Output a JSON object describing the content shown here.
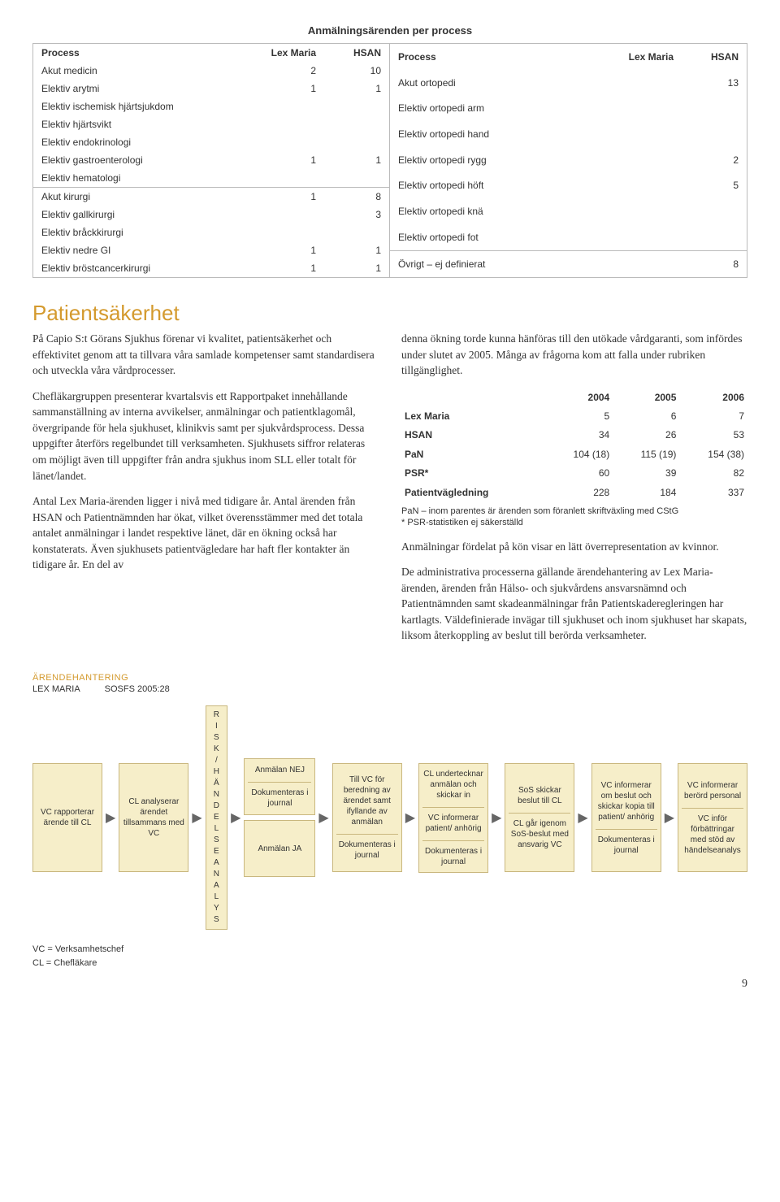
{
  "tableTitle": "Anmälningsärenden per process",
  "table": {
    "headers": [
      "Process",
      "Lex Maria",
      "HSAN"
    ],
    "left": [
      {
        "p": "Akut medicin",
        "lm": "2",
        "h": "10"
      },
      {
        "p": "Elektiv arytmi",
        "lm": "1",
        "h": "1"
      },
      {
        "p": "Elektiv ischemisk hjärtsjukdom",
        "lm": "",
        "h": ""
      },
      {
        "p": "Elektiv hjärtsvikt",
        "lm": "",
        "h": ""
      },
      {
        "p": "Elektiv endokrinologi",
        "lm": "",
        "h": ""
      },
      {
        "p": "Elektiv gastroenterologi",
        "lm": "1",
        "h": "1"
      },
      {
        "p": "Elektiv hematologi",
        "lm": "",
        "h": ""
      }
    ],
    "left2": [
      {
        "p": "Akut kirurgi",
        "lm": "1",
        "h": "8"
      },
      {
        "p": "Elektiv gallkirurgi",
        "lm": "",
        "h": "3"
      },
      {
        "p": "Elektiv bråckkirurgi",
        "lm": "",
        "h": ""
      },
      {
        "p": "Elektiv nedre GI",
        "lm": "1",
        "h": "1"
      },
      {
        "p": "Elektiv bröstcancerkirurgi",
        "lm": "1",
        "h": "1"
      }
    ],
    "right": [
      {
        "p": "Akut ortopedi",
        "lm": "",
        "h": "13"
      },
      {
        "p": "Elektiv ortopedi arm",
        "lm": "",
        "h": ""
      },
      {
        "p": "Elektiv ortopedi hand",
        "lm": "",
        "h": ""
      },
      {
        "p": "Elektiv ortopedi rygg",
        "lm": "",
        "h": "2"
      },
      {
        "p": "Elektiv ortopedi höft",
        "lm": "",
        "h": "5"
      },
      {
        "p": "Elektiv ortopedi knä",
        "lm": "",
        "h": ""
      },
      {
        "p": "Elektiv ortopedi fot",
        "lm": "",
        "h": ""
      }
    ],
    "right2": [
      {
        "p": "Övrigt – ej definierat",
        "lm": "",
        "h": "8"
      }
    ]
  },
  "sectionTitle": "Patientsäkerhet",
  "paragraphs_left": [
    "På Capio S:t Görans Sjukhus förenar vi kvalitet, patientsäkerhet och effektivitet genom att ta tillvara våra samlade kompetenser samt standardisera och utveckla våra vårdprocesser.",
    "Chefläkargruppen presenterar kvartalsvis ett Rapportpaket innehållande sammanställning av interna avvikelser, anmälningar och patientklagomål, övergripande för hela sjukhuset, klinikvis samt per sjukvårdsprocess. Dessa uppgifter återförs regelbundet till verksamheten. Sjukhusets siffror relateras om möjligt även till uppgifter från andra sjukhus inom SLL eller totalt för länet/landet.",
    "Antal Lex Maria-ärenden ligger i nivå med tidigare år. Antal ärenden från HSAN och Patientnämnden har ökat, vilket överensstämmer med det totala antalet anmälningar i landet respektive länet, där en ökning också har konstaterats. Även sjukhusets patientvägledare har haft fler kontakter än tidigare år. En del av"
  ],
  "paragraphs_right_top": "denna ökning torde kunna hänföras till den utökade vårdgaranti, som infördes under slutet av 2005. Många av frågorna kom att falla under rubriken tillgänglighet.",
  "stats": {
    "years": [
      "2004",
      "2005",
      "2006"
    ],
    "rows": [
      {
        "label": "Lex Maria",
        "v": [
          "5",
          "6",
          "7"
        ]
      },
      {
        "label": "HSAN",
        "v": [
          "34",
          "26",
          "53"
        ]
      },
      {
        "label": "PaN",
        "v": [
          "104 (18)",
          "115 (19)",
          "154 (38)"
        ]
      },
      {
        "label": "PSR*",
        "v": [
          "60",
          "39",
          "82"
        ]
      },
      {
        "label": "Patientvägledning",
        "v": [
          "228",
          "184",
          "337"
        ]
      }
    ],
    "note": "PaN – inom parentes är ärenden som föranlett skriftväxling med CStG\n* PSR-statistiken ej säkerställd"
  },
  "paragraphs_right_bottom": [
    "Anmälningar fördelat på kön visar en lätt överrepresentation av kvinnor.",
    "De administrativa processerna gällande ärendehantering av Lex Maria-ärenden, ärenden från Hälso- och sjukvårdens ansvarsnämnd och Patientnämnden samt skadeanmälningar från Patientskaderegleringen har kartlagts. Väldefinierade invägar till sjukhuset och inom sjukhuset har skapats, liksom återkoppling av beslut till berörda verksamheter."
  ],
  "flow": {
    "title": "ÄRENDEHANTERING",
    "sub_left": "LEX MARIA",
    "sub_right": "SOSFS 2005:28",
    "boxes": {
      "b1": "VC rapporterar ärende till CL",
      "b2": "CL analyserar ärendet tillsammans med VC",
      "vbox": "R I S K / H Ä N D E L S E A N A L Y S",
      "b3a": "Anmälan NEJ",
      "b3a_sub": "Dokumenteras i journal",
      "b3b": "Anmälan JA",
      "b4": "Till VC för beredning av ärendet samt ifyllande av anmälan",
      "b4_sub": "Dokumenteras i journal",
      "b5": "CL undertecknar anmälan och skickar in",
      "b5_mid": "VC informerar patient/ anhörig",
      "b5_sub": "Dokumenteras i journal",
      "b6": "SoS skickar beslut till CL",
      "b6_sub": "CL går igenom SoS-beslut med ansvarig VC",
      "b7": "VC informerar om beslut och skickar kopia till patient/ anhörig",
      "b7_sub": "Dokumenteras i journal",
      "b8": "VC informerar berörd personal",
      "b8_sub": "VC inför förbättringar med stöd av händelseanalys"
    },
    "legend1": "VC = Verksamhetschef",
    "legend2": "CL = Chefläkare"
  },
  "pageNum": "9"
}
